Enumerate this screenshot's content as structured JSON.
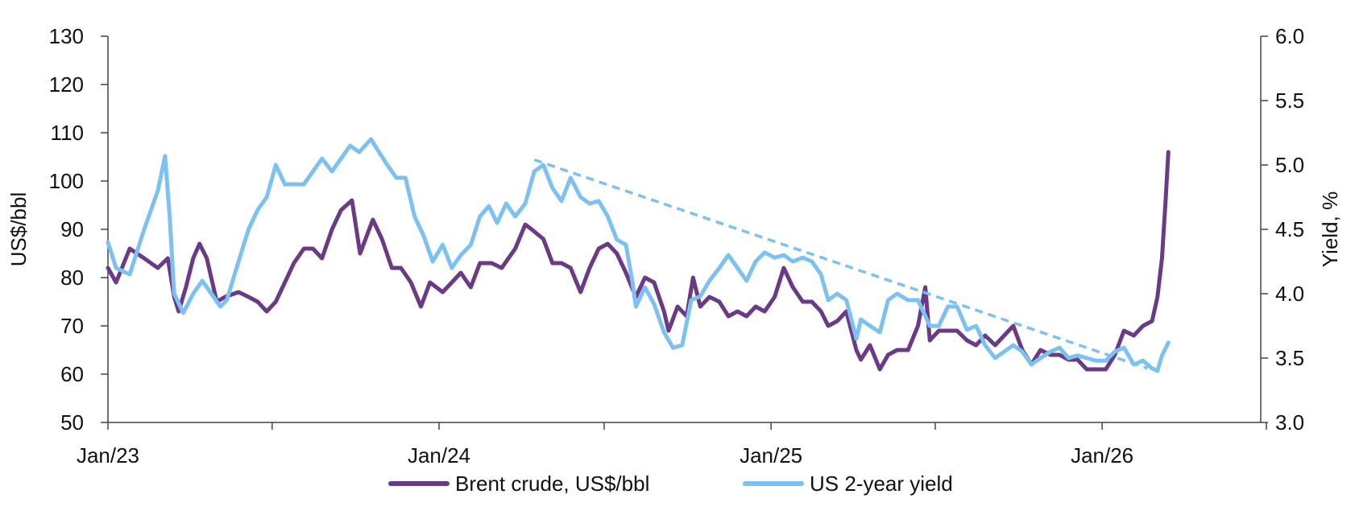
{
  "chart_data": {
    "type": "line",
    "title": "",
    "x_axis": {
      "tick_labels": [
        "Jan/23",
        "Jan/24",
        "Jan/25",
        "Jan/26"
      ],
      "range": [
        "2023-01-01",
        "2026-07-01"
      ]
    },
    "y_left": {
      "label": "US$/bbl",
      "ylim": [
        50,
        130
      ],
      "ticks": [
        "50",
        "60",
        "70",
        "80",
        "90",
        "100",
        "110",
        "120",
        "130"
      ]
    },
    "y_right": {
      "label": "Yield, %",
      "ylim": [
        3.0,
        6.0
      ],
      "ticks": [
        "3.0",
        "3.5",
        "4.0",
        "4.5",
        "5.0",
        "5.5",
        "6.0"
      ]
    },
    "grid": false,
    "legend_position": "bottom-center",
    "series": [
      {
        "name": "Brent crude, US$/bbl",
        "axis": "left",
        "color": "#6b3a86",
        "points": [
          [
            "2023-01-01",
            82
          ],
          [
            "2023-01-10",
            79
          ],
          [
            "2023-01-25",
            86
          ],
          [
            "2023-02-10",
            84
          ],
          [
            "2023-02-25",
            82
          ],
          [
            "2023-03-08",
            84
          ],
          [
            "2023-03-15",
            76
          ],
          [
            "2023-03-20",
            73
          ],
          [
            "2023-03-28",
            78
          ],
          [
            "2023-04-05",
            84
          ],
          [
            "2023-04-12",
            87
          ],
          [
            "2023-04-20",
            84
          ],
          [
            "2023-05-01",
            75
          ],
          [
            "2023-05-10",
            76
          ],
          [
            "2023-05-25",
            77
          ],
          [
            "2023-06-05",
            76
          ],
          [
            "2023-06-15",
            75
          ],
          [
            "2023-06-25",
            73
          ],
          [
            "2023-07-05",
            75
          ],
          [
            "2023-07-15",
            79
          ],
          [
            "2023-07-25",
            83
          ],
          [
            "2023-08-05",
            86
          ],
          [
            "2023-08-15",
            86
          ],
          [
            "2023-08-25",
            84
          ],
          [
            "2023-09-05",
            90
          ],
          [
            "2023-09-15",
            94
          ],
          [
            "2023-09-27",
            96
          ],
          [
            "2023-10-06",
            85
          ],
          [
            "2023-10-12",
            88
          ],
          [
            "2023-10-20",
            92
          ],
          [
            "2023-10-30",
            88
          ],
          [
            "2023-11-10",
            82
          ],
          [
            "2023-11-20",
            82
          ],
          [
            "2023-12-01",
            79
          ],
          [
            "2023-12-12",
            74
          ],
          [
            "2023-12-22",
            79
          ],
          [
            "2024-01-05",
            77
          ],
          [
            "2024-01-15",
            79
          ],
          [
            "2024-01-25",
            81
          ],
          [
            "2024-02-05",
            78
          ],
          [
            "2024-02-15",
            83
          ],
          [
            "2024-02-28",
            83
          ],
          [
            "2024-03-10",
            82
          ],
          [
            "2024-03-25",
            86
          ],
          [
            "2024-04-05",
            91
          ],
          [
            "2024-04-12",
            90
          ],
          [
            "2024-04-25",
            88
          ],
          [
            "2024-05-05",
            83
          ],
          [
            "2024-05-15",
            83
          ],
          [
            "2024-05-25",
            82
          ],
          [
            "2024-06-05",
            77
          ],
          [
            "2024-06-15",
            82
          ],
          [
            "2024-06-25",
            86
          ],
          [
            "2024-07-05",
            87
          ],
          [
            "2024-07-15",
            85
          ],
          [
            "2024-07-25",
            81
          ],
          [
            "2024-08-05",
            76
          ],
          [
            "2024-08-15",
            80
          ],
          [
            "2024-08-25",
            79
          ],
          [
            "2024-09-05",
            73
          ],
          [
            "2024-09-10",
            69
          ],
          [
            "2024-09-20",
            74
          ],
          [
            "2024-09-30",
            72
          ],
          [
            "2024-10-07",
            80
          ],
          [
            "2024-10-15",
            74
          ],
          [
            "2024-10-25",
            76
          ],
          [
            "2024-11-05",
            75
          ],
          [
            "2024-11-15",
            72
          ],
          [
            "2024-11-25",
            73
          ],
          [
            "2024-12-05",
            72
          ],
          [
            "2024-12-15",
            74
          ],
          [
            "2024-12-25",
            73
          ],
          [
            "2025-01-05",
            76
          ],
          [
            "2025-01-15",
            82
          ],
          [
            "2025-01-25",
            78
          ],
          [
            "2025-02-05",
            75
          ],
          [
            "2025-02-15",
            75
          ],
          [
            "2025-02-25",
            73
          ],
          [
            "2025-03-05",
            70
          ],
          [
            "2025-03-15",
            71
          ],
          [
            "2025-03-25",
            73
          ],
          [
            "2025-04-05",
            65
          ],
          [
            "2025-04-10",
            63
          ],
          [
            "2025-04-20",
            66
          ],
          [
            "2025-05-01",
            61
          ],
          [
            "2025-05-10",
            64
          ],
          [
            "2025-05-20",
            65
          ],
          [
            "2025-06-01",
            65
          ],
          [
            "2025-06-12",
            70
          ],
          [
            "2025-06-20",
            78
          ],
          [
            "2025-06-25",
            67
          ],
          [
            "2025-07-05",
            69
          ],
          [
            "2025-07-15",
            69
          ],
          [
            "2025-07-25",
            69
          ],
          [
            "2025-08-05",
            67
          ],
          [
            "2025-08-15",
            66
          ],
          [
            "2025-08-25",
            68
          ],
          [
            "2025-09-05",
            66
          ],
          [
            "2025-09-15",
            68
          ],
          [
            "2025-09-25",
            70
          ],
          [
            "2025-10-05",
            65
          ],
          [
            "2025-10-15",
            62
          ],
          [
            "2025-10-25",
            65
          ],
          [
            "2025-11-05",
            64
          ],
          [
            "2025-11-15",
            64
          ],
          [
            "2025-11-25",
            63
          ],
          [
            "2025-12-05",
            63
          ],
          [
            "2025-12-15",
            61
          ],
          [
            "2025-12-25",
            61
          ],
          [
            "2026-01-05",
            61
          ],
          [
            "2026-01-15",
            64
          ],
          [
            "2026-01-25",
            69
          ],
          [
            "2026-02-05",
            68
          ],
          [
            "2026-02-15",
            70
          ],
          [
            "2026-02-25",
            71
          ],
          [
            "2026-03-03",
            76
          ],
          [
            "2026-03-08",
            84
          ],
          [
            "2026-03-12",
            96
          ],
          [
            "2026-03-15",
            106
          ]
        ]
      },
      {
        "name": "US 2-year yield",
        "axis": "right",
        "color": "#7cc1f2",
        "points": [
          [
            "2023-01-01",
            4.4
          ],
          [
            "2023-01-10",
            4.2
          ],
          [
            "2023-01-25",
            4.15
          ],
          [
            "2023-02-10",
            4.5
          ],
          [
            "2023-02-25",
            4.8
          ],
          [
            "2023-03-05",
            5.07
          ],
          [
            "2023-03-10",
            4.6
          ],
          [
            "2023-03-15",
            4.0
          ],
          [
            "2023-03-25",
            3.85
          ],
          [
            "2023-04-05",
            4.0
          ],
          [
            "2023-04-15",
            4.1
          ],
          [
            "2023-04-25",
            4.0
          ],
          [
            "2023-05-05",
            3.9
          ],
          [
            "2023-05-12",
            3.95
          ],
          [
            "2023-05-25",
            4.25
          ],
          [
            "2023-06-05",
            4.5
          ],
          [
            "2023-06-15",
            4.65
          ],
          [
            "2023-06-25",
            4.75
          ],
          [
            "2023-07-05",
            5.0
          ],
          [
            "2023-07-15",
            4.85
          ],
          [
            "2023-07-25",
            4.85
          ],
          [
            "2023-08-05",
            4.85
          ],
          [
            "2023-08-15",
            4.95
          ],
          [
            "2023-08-25",
            5.05
          ],
          [
            "2023-09-05",
            4.95
          ],
          [
            "2023-09-15",
            5.05
          ],
          [
            "2023-09-25",
            5.15
          ],
          [
            "2023-10-05",
            5.1
          ],
          [
            "2023-10-18",
            5.2
          ],
          [
            "2023-10-25",
            5.12
          ],
          [
            "2023-11-05",
            5.0
          ],
          [
            "2023-11-15",
            4.9
          ],
          [
            "2023-11-25",
            4.9
          ],
          [
            "2023-12-05",
            4.6
          ],
          [
            "2023-12-15",
            4.45
          ],
          [
            "2023-12-25",
            4.25
          ],
          [
            "2024-01-05",
            4.38
          ],
          [
            "2024-01-15",
            4.2
          ],
          [
            "2024-01-25",
            4.3
          ],
          [
            "2024-02-05",
            4.38
          ],
          [
            "2024-02-15",
            4.6
          ],
          [
            "2024-02-25",
            4.68
          ],
          [
            "2024-03-05",
            4.55
          ],
          [
            "2024-03-15",
            4.7
          ],
          [
            "2024-03-25",
            4.6
          ],
          [
            "2024-04-05",
            4.7
          ],
          [
            "2024-04-15",
            4.95
          ],
          [
            "2024-04-25",
            5.0
          ],
          [
            "2024-05-05",
            4.82
          ],
          [
            "2024-05-15",
            4.72
          ],
          [
            "2024-05-25",
            4.9
          ],
          [
            "2024-06-05",
            4.75
          ],
          [
            "2024-06-15",
            4.7
          ],
          [
            "2024-06-25",
            4.72
          ],
          [
            "2024-07-05",
            4.6
          ],
          [
            "2024-07-15",
            4.42
          ],
          [
            "2024-07-25",
            4.38
          ],
          [
            "2024-08-01",
            4.1
          ],
          [
            "2024-08-05",
            3.9
          ],
          [
            "2024-08-15",
            4.05
          ],
          [
            "2024-08-25",
            3.92
          ],
          [
            "2024-09-05",
            3.7
          ],
          [
            "2024-09-15",
            3.58
          ],
          [
            "2024-09-25",
            3.6
          ],
          [
            "2024-10-05",
            3.95
          ],
          [
            "2024-10-15",
            3.98
          ],
          [
            "2024-10-25",
            4.1
          ],
          [
            "2024-11-05",
            4.2
          ],
          [
            "2024-11-15",
            4.3
          ],
          [
            "2024-11-25",
            4.2
          ],
          [
            "2024-12-05",
            4.1
          ],
          [
            "2024-12-15",
            4.25
          ],
          [
            "2024-12-25",
            4.32
          ],
          [
            "2025-01-05",
            4.28
          ],
          [
            "2025-01-15",
            4.3
          ],
          [
            "2025-01-25",
            4.25
          ],
          [
            "2025-02-05",
            4.28
          ],
          [
            "2025-02-15",
            4.25
          ],
          [
            "2025-02-25",
            4.15
          ],
          [
            "2025-03-05",
            3.95
          ],
          [
            "2025-03-15",
            4.0
          ],
          [
            "2025-03-25",
            3.95
          ],
          [
            "2025-04-05",
            3.65
          ],
          [
            "2025-04-10",
            3.8
          ],
          [
            "2025-04-20",
            3.75
          ],
          [
            "2025-05-01",
            3.7
          ],
          [
            "2025-05-10",
            3.95
          ],
          [
            "2025-05-20",
            4.0
          ],
          [
            "2025-06-01",
            3.95
          ],
          [
            "2025-06-12",
            3.95
          ],
          [
            "2025-06-25",
            3.75
          ],
          [
            "2025-07-05",
            3.75
          ],
          [
            "2025-07-15",
            3.9
          ],
          [
            "2025-07-25",
            3.9
          ],
          [
            "2025-08-05",
            3.72
          ],
          [
            "2025-08-15",
            3.75
          ],
          [
            "2025-08-25",
            3.6
          ],
          [
            "2025-09-05",
            3.5
          ],
          [
            "2025-09-15",
            3.55
          ],
          [
            "2025-09-25",
            3.6
          ],
          [
            "2025-10-05",
            3.55
          ],
          [
            "2025-10-15",
            3.45
          ],
          [
            "2025-10-25",
            3.5
          ],
          [
            "2025-11-05",
            3.55
          ],
          [
            "2025-11-15",
            3.58
          ],
          [
            "2025-11-25",
            3.5
          ],
          [
            "2025-12-05",
            3.52
          ],
          [
            "2025-12-15",
            3.5
          ],
          [
            "2025-12-25",
            3.48
          ],
          [
            "2026-01-05",
            3.48
          ],
          [
            "2026-01-15",
            3.55
          ],
          [
            "2026-01-25",
            3.58
          ],
          [
            "2026-02-05",
            3.45
          ],
          [
            "2026-02-15",
            3.48
          ],
          [
            "2026-02-25",
            3.42
          ],
          [
            "2026-03-03",
            3.4
          ],
          [
            "2026-03-08",
            3.52
          ],
          [
            "2026-03-15",
            3.62
          ]
        ]
      }
    ],
    "annotations": [
      {
        "type": "dashed-trendline",
        "axis": "right",
        "color": "#7cc1f2",
        "from": [
          "2024-04-15",
          5.04
        ],
        "to": [
          "2026-02-20",
          3.42
        ]
      }
    ]
  }
}
